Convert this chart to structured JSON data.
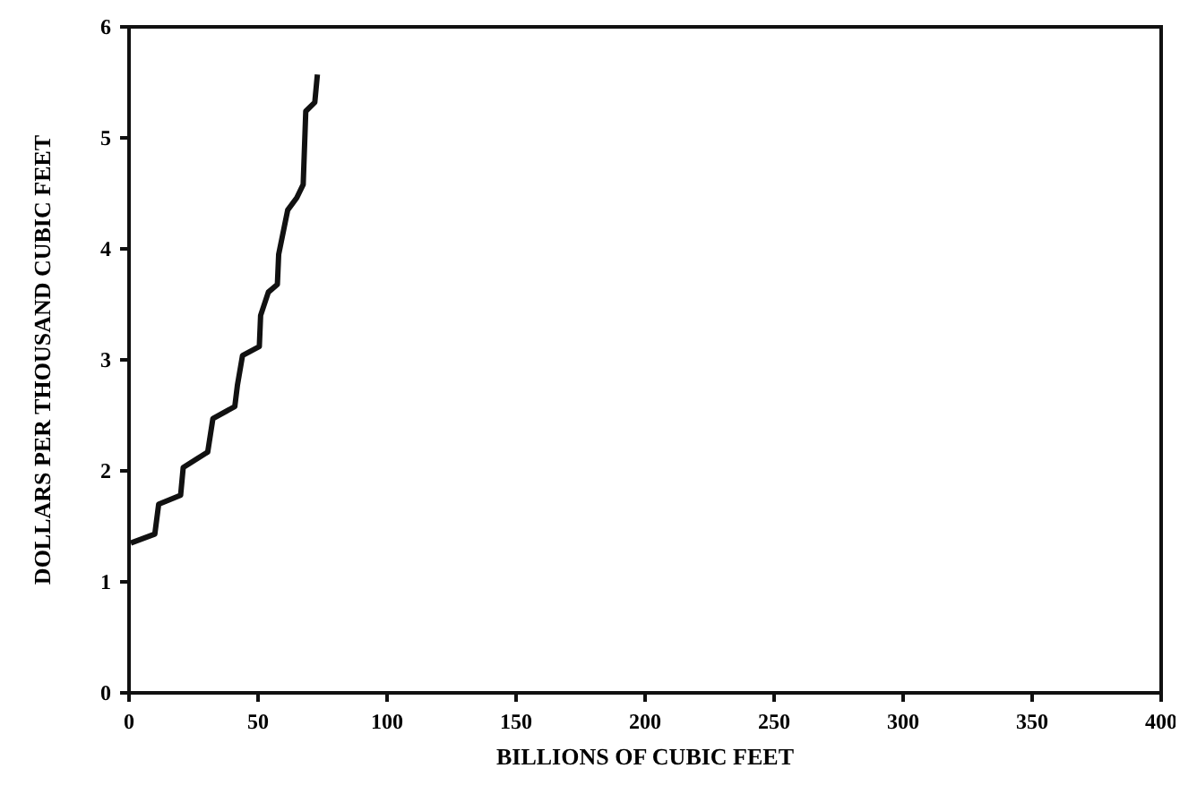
{
  "chart_data": {
    "type": "line",
    "xlabel": "BILLIONS OF CUBIC FEET",
    "ylabel": "DOLLARS PER THOUSAND CUBIC FEET",
    "xlim": [
      0,
      400
    ],
    "xticks": [
      0,
      50,
      100,
      150,
      200,
      250,
      300,
      350,
      400
    ],
    "ylim": [
      0,
      6
    ],
    "yticks": [
      0,
      1,
      2,
      3,
      4,
      5,
      6
    ],
    "marker": "none",
    "line_style": "solid",
    "series": [
      {
        "color": "#111111",
        "x": [
          0.7,
          10,
          11.5,
          20,
          21,
          30.5,
          32.5,
          41,
          42,
          44,
          50.5,
          51,
          54,
          57.5,
          58,
          61.5,
          65,
          67.5,
          68.5,
          72,
          73
        ],
        "values": [
          1.35,
          1.43,
          1.7,
          1.78,
          2.03,
          2.17,
          2.47,
          2.58,
          2.77,
          3.04,
          3.12,
          3.4,
          3.61,
          3.68,
          3.95,
          4.35,
          4.46,
          4.58,
          5.24,
          5.32,
          5.57
        ]
      }
    ]
  }
}
